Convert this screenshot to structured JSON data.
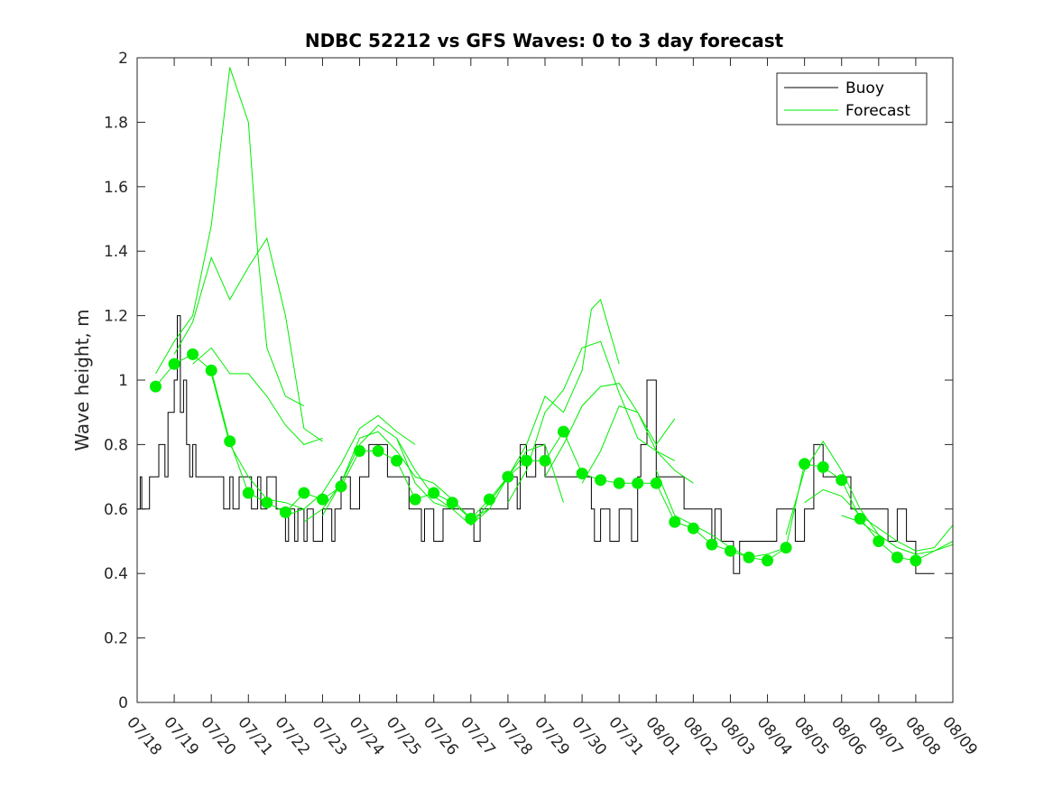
{
  "chart_data": {
    "type": "line",
    "title": "NDBC 52212 vs GFS Waves: 0 to 3 day forecast",
    "xlabel": "",
    "ylabel": "Wave height, m",
    "xlim": [
      "07/18",
      "08/09"
    ],
    "ylim": [
      0,
      2
    ],
    "x_tick_labels": [
      "07/18",
      "07/19",
      "07/20",
      "07/21",
      "07/22",
      "07/23",
      "07/24",
      "07/25",
      "07/26",
      "07/27",
      "07/28",
      "07/29",
      "07/30",
      "07/31",
      "08/01",
      "08/02",
      "08/03",
      "08/04",
      "08/05",
      "08/06",
      "08/07",
      "08/08",
      "08/09"
    ],
    "y_ticks": [
      0,
      0.2,
      0.4,
      0.6,
      0.8,
      1,
      1.2,
      1.4,
      1.6,
      1.8,
      2
    ],
    "grid": false,
    "legend": {
      "placement": "top-right",
      "entries": [
        "Buoy",
        "Forecast"
      ]
    },
    "colors": {
      "buoy": "#000000",
      "forecast": "#00ee00",
      "markers": "#00ee00"
    },
    "series": [
      {
        "name": "Buoy",
        "x": [
          "07/18 00:00",
          "07/18 02:00",
          "07/18 03:00",
          "07/18 06:00",
          "07/18 08:00",
          "07/18 12:00",
          "07/18 14:00",
          "07/18 18:00",
          "07/18 20:00",
          "07/19 00:00",
          "07/19 02:00",
          "07/19 04:00",
          "07/19 06:00",
          "07/19 08:00",
          "07/19 10:00",
          "07/19 12:00",
          "07/19 14:00",
          "07/19 16:00",
          "07/19 18:00",
          "07/20 00:00",
          "07/20 06:00",
          "07/20 08:00",
          "07/20 12:00",
          "07/20 14:00",
          "07/20 18:00",
          "07/21 00:00",
          "07/21 02:00",
          "07/21 06:00",
          "07/21 08:00",
          "07/21 12:00",
          "07/21 18:00",
          "07/21 20:00",
          "07/22 00:00",
          "07/22 02:00",
          "07/22 06:00",
          "07/22 08:00",
          "07/22 12:00",
          "07/22 14:00",
          "07/22 18:00",
          "07/23 00:00",
          "07/23 06:00",
          "07/23 08:00",
          "07/23 12:00",
          "07/23 18:00",
          "07/24 00:00",
          "07/24 06:00",
          "07/24 12:00",
          "07/24 18:00",
          "07/25 00:00",
          "07/25 06:00",
          "07/25 08:00",
          "07/25 12:00",
          "07/25 16:00",
          "07/25 18:00",
          "07/26 00:00",
          "07/26 06:00",
          "07/26 12:00",
          "07/26 18:00",
          "07/27 00:00",
          "07/27 02:00",
          "07/27 06:00",
          "07/27 12:00",
          "07/27 18:00",
          "07/28 00:00",
          "07/28 06:00",
          "07/28 08:00",
          "07/28 12:00",
          "07/28 18:00",
          "07/29 00:00",
          "07/29 06:00",
          "07/29 12:00",
          "07/29 18:00",
          "07/30 00:00",
          "07/30 06:00",
          "07/30 08:00",
          "07/30 12:00",
          "07/30 18:00",
          "07/31 00:00",
          "07/31 06:00",
          "07/31 08:00",
          "07/31 12:00",
          "07/31 14:00",
          "07/31 18:00",
          "08/01 00:00",
          "08/01 06:00",
          "08/01 12:00",
          "08/01 18:00",
          "08/02 00:00",
          "08/02 06:00",
          "08/02 12:00",
          "08/02 14:00",
          "08/02 18:00",
          "08/03 00:00",
          "08/03 02:00",
          "08/03 06:00",
          "08/03 12:00",
          "08/03 18:00",
          "08/04 00:00",
          "08/04 06:00",
          "08/04 12:00",
          "08/04 18:00",
          "08/05 00:00",
          "08/05 06:00",
          "08/05 12:00",
          "08/05 18:00",
          "08/06 00:00",
          "08/06 06:00",
          "08/06 12:00",
          "08/06 18:00",
          "08/07 00:00",
          "08/07 06:00",
          "08/07 12:00",
          "08/07 18:00",
          "08/08 00:00",
          "08/08 06:00"
        ],
        "values": [
          0.6,
          0.7,
          0.6,
          0.6,
          0.7,
          0.7,
          0.8,
          0.7,
          0.9,
          1.0,
          1.2,
          0.9,
          1.0,
          0.8,
          0.7,
          0.8,
          0.7,
          0.7,
          0.7,
          0.7,
          0.7,
          0.6,
          0.7,
          0.6,
          0.7,
          0.7,
          0.6,
          0.7,
          0.6,
          0.7,
          0.6,
          0.6,
          0.5,
          0.6,
          0.5,
          0.6,
          0.5,
          0.6,
          0.5,
          0.6,
          0.5,
          0.6,
          0.7,
          0.6,
          0.7,
          0.8,
          0.8,
          0.7,
          0.7,
          0.7,
          0.6,
          0.6,
          0.5,
          0.6,
          0.5,
          0.6,
          0.6,
          0.6,
          0.6,
          0.5,
          0.6,
          0.6,
          0.6,
          0.7,
          0.6,
          0.8,
          0.7,
          0.8,
          0.7,
          0.7,
          0.7,
          0.7,
          0.7,
          0.6,
          0.5,
          0.6,
          0.5,
          0.6,
          0.6,
          0.5,
          0.7,
          0.8,
          1.0,
          0.7,
          0.7,
          0.7,
          0.6,
          0.6,
          0.6,
          0.5,
          0.6,
          0.5,
          0.5,
          0.4,
          0.5,
          0.5,
          0.5,
          0.5,
          0.6,
          0.6,
          0.5,
          0.6,
          0.8,
          0.7,
          0.7,
          0.7,
          0.6,
          0.6,
          0.6,
          0.6,
          0.5,
          0.6,
          0.5,
          0.4,
          0.4
        ]
      },
      {
        "name": "Forecast",
        "runs": [
          {
            "x": [
              "07/18 12:00",
              "07/19 00:00",
              "07/19 12:00",
              "07/20 00:00",
              "07/20 12:00",
              "07/21 00:00",
              "07/21 12:00",
              "07/22 00:00",
              "07/22 12:00",
              "07/23 00:00",
              "07/23 12:00",
              "07/24 00:00",
              "07/24 12:00",
              "07/25 00:00",
              "07/25 12:00",
              "07/26 00:00",
              "07/26 12:00",
              "07/27 00:00",
              "07/27 12:00",
              "07/28 00:00",
              "07/28 12:00",
              "07/29 00:00",
              "07/29 12:00",
              "07/30 00:00",
              "07/30 12:00",
              "07/31 00:00",
              "07/31 12:00",
              "08/01 00:00",
              "08/01 12:00",
              "08/02 00:00",
              "08/02 12:00",
              "08/03 00:00",
              "08/03 12:00",
              "08/04 00:00",
              "08/04 12:00",
              "08/05 00:00",
              "08/05 12:00",
              "08/06 00:00",
              "08/06 12:00",
              "08/07 00:00",
              "08/07 12:00",
              "08/08 00:00",
              "08/08 12:00",
              "08/09 00:00"
            ],
            "values": [
              0.98,
              1.05,
              1.08,
              1.03,
              0.81,
              0.65,
              0.62,
              0.59,
              0.65,
              0.63,
              0.67,
              0.78,
              0.78,
              0.75,
              0.63,
              0.65,
              0.62,
              0.57,
              0.63,
              0.7,
              0.75,
              0.75,
              0.84,
              0.71,
              0.69,
              0.68,
              0.68,
              0.68,
              0.56,
              0.54,
              0.49,
              0.47,
              0.45,
              0.44,
              0.48,
              0.74,
              0.73,
              0.69,
              0.57,
              0.5,
              0.45,
              0.44,
              0.47,
              0.5
            ]
          },
          {
            "x": [
              "07/18 12:00",
              "07/19 00:00",
              "07/19 12:00",
              "07/20 00:00",
              "07/20 12:00",
              "07/21 00:00",
              "07/21 06:00",
              "07/21 12:00",
              "07/22 00:00",
              "07/22 12:00"
            ],
            "values": [
              1.02,
              1.12,
              1.2,
              1.48,
              1.97,
              1.8,
              1.4,
              1.1,
              0.95,
              0.92
            ]
          },
          {
            "x": [
              "07/19 00:00",
              "07/19 12:00",
              "07/20 00:00",
              "07/20 12:00",
              "07/21 00:00",
              "07/21 12:00",
              "07/22 00:00",
              "07/22 12:00",
              "07/23 00:00"
            ],
            "values": [
              1.08,
              1.18,
              1.38,
              1.25,
              1.35,
              1.44,
              1.2,
              0.85,
              0.81
            ]
          },
          {
            "x": [
              "07/19 12:00",
              "07/20 00:00",
              "07/20 12:00",
              "07/21 00:00",
              "07/21 12:00",
              "07/22 00:00",
              "07/22 12:00",
              "07/23 00:00"
            ],
            "values": [
              1.05,
              1.1,
              1.02,
              1.02,
              0.95,
              0.86,
              0.8,
              0.82
            ]
          },
          {
            "x": [
              "07/20 00:00",
              "07/20 12:00",
              "07/21 00:00",
              "07/21 12:00",
              "07/22 00:00",
              "07/22 12:00"
            ],
            "values": [
              1.02,
              0.8,
              0.7,
              0.63,
              0.62,
              0.6
            ]
          },
          {
            "x": [
              "07/22 00:00",
              "07/22 12:00",
              "07/23 00:00",
              "07/23 12:00",
              "07/24 00:00",
              "07/24 12:00",
              "07/25 00:00",
              "07/25 12:00"
            ],
            "values": [
              0.58,
              0.6,
              0.65,
              0.74,
              0.85,
              0.89,
              0.84,
              0.8
            ]
          },
          {
            "x": [
              "07/22 12:00",
              "07/23 00:00",
              "07/23 12:00",
              "07/24 00:00",
              "07/24 12:00",
              "07/25 00:00",
              "07/25 12:00",
              "07/26 00:00",
              "07/26 12:00"
            ],
            "values": [
              0.56,
              0.6,
              0.68,
              0.8,
              0.86,
              0.82,
              0.72,
              0.64,
              0.6
            ]
          },
          {
            "x": [
              "07/23 00:00",
              "07/23 12:00",
              "07/24 00:00",
              "07/24 12:00",
              "07/25 00:00",
              "07/25 12:00",
              "07/26 00:00",
              "07/26 12:00",
              "07/27 00:00",
              "07/27 12:00"
            ],
            "values": [
              0.58,
              0.68,
              0.82,
              0.84,
              0.78,
              0.7,
              0.68,
              0.63,
              0.57,
              0.6
            ]
          },
          {
            "x": [
              "07/25 00:00",
              "07/25 12:00",
              "07/26 00:00",
              "07/26 12:00",
              "07/27 00:00",
              "07/27 12:00",
              "07/28 00:00",
              "07/28 12:00",
              "07/29 00:00",
              "07/29 12:00"
            ],
            "values": [
              0.82,
              0.68,
              0.62,
              0.6,
              0.55,
              0.6,
              0.7,
              0.78,
              0.8,
              0.62
            ]
          },
          {
            "x": [
              "07/27 00:00",
              "07/27 12:00",
              "07/28 00:00",
              "07/28 12:00",
              "07/29 00:00",
              "07/29 12:00",
              "07/30 00:00",
              "07/30 06:00",
              "07/30 12:00",
              "07/31 00:00"
            ],
            "values": [
              0.55,
              0.62,
              0.7,
              0.8,
              0.95,
              0.9,
              1.03,
              1.22,
              1.25,
              1.05
            ]
          },
          {
            "x": [
              "07/28 00:00",
              "07/28 12:00",
              "07/29 00:00",
              "07/29 12:00",
              "07/30 00:00",
              "07/30 12:00",
              "07/31 00:00",
              "07/31 12:00",
              "08/01 00:00",
              "08/01 12:00"
            ],
            "values": [
              0.62,
              0.72,
              0.9,
              0.97,
              1.1,
              1.12,
              0.96,
              0.82,
              0.78,
              0.75
            ]
          },
          {
            "x": [
              "07/29 00:00",
              "07/29 12:00",
              "07/30 00:00",
              "07/30 12:00",
              "07/31 00:00",
              "07/31 12:00",
              "08/01 00:00",
              "08/01 12:00"
            ],
            "values": [
              0.7,
              0.8,
              0.92,
              0.98,
              0.99,
              0.9,
              0.8,
              0.88
            ]
          },
          {
            "x": [
              "07/30 00:00",
              "07/30 12:00",
              "07/31 00:00",
              "07/31 12:00",
              "08/01 00:00",
              "08/01 12:00",
              "08/02 00:00"
            ],
            "values": [
              0.68,
              0.78,
              0.92,
              0.9,
              0.78,
              0.72,
              0.68
            ]
          },
          {
            "x": [
              "08/01 00:00",
              "08/01 12:00",
              "08/02 00:00",
              "08/02 12:00",
              "08/03 00:00",
              "08/03 12:00",
              "08/04 00:00",
              "08/04 12:00"
            ],
            "values": [
              0.72,
              0.58,
              0.55,
              0.52,
              0.48,
              0.45,
              0.46,
              0.48
            ]
          },
          {
            "x": [
              "08/04 12:00",
              "08/05 00:00",
              "08/05 12:00",
              "08/06 00:00",
              "08/06 12:00",
              "08/07 00:00",
              "08/07 12:00",
              "08/08 00:00"
            ],
            "values": [
              0.52,
              0.72,
              0.81,
              0.72,
              0.6,
              0.52,
              0.48,
              0.46
            ]
          },
          {
            "x": [
              "08/05 00:00",
              "08/05 12:00",
              "08/06 00:00",
              "08/06 12:00",
              "08/07 00:00",
              "08/07 12:00",
              "08/08 00:00",
              "08/08 12:00",
              "08/09 00:00"
            ],
            "values": [
              0.62,
              0.66,
              0.64,
              0.58,
              0.54,
              0.5,
              0.47,
              0.48,
              0.55
            ]
          },
          {
            "x": [
              "08/06 00:00",
              "08/06 12:00",
              "08/07 00:00",
              "08/07 12:00",
              "08/08 00:00",
              "08/08 12:00",
              "08/09 00:00"
            ],
            "values": [
              0.58,
              0.56,
              0.52,
              0.48,
              0.46,
              0.47,
              0.49
            ]
          }
        ]
      }
    ],
    "markers": {
      "x": [
        "07/18 12:00",
        "07/19 00:00",
        "07/19 12:00",
        "07/20 00:00",
        "07/20 12:00",
        "07/21 00:00",
        "07/21 12:00",
        "07/22 00:00",
        "07/22 12:00",
        "07/23 00:00",
        "07/23 12:00",
        "07/24 00:00",
        "07/24 12:00",
        "07/25 00:00",
        "07/25 12:00",
        "07/26 00:00",
        "07/26 12:00",
        "07/27 00:00",
        "07/27 12:00",
        "07/28 00:00",
        "07/28 12:00",
        "07/29 00:00",
        "07/29 12:00",
        "07/30 00:00",
        "07/30 12:00",
        "07/31 00:00",
        "07/31 12:00",
        "08/01 00:00",
        "08/01 12:00",
        "08/02 00:00",
        "08/02 12:00",
        "08/03 00:00",
        "08/03 12:00",
        "08/04 00:00",
        "08/04 12:00",
        "08/05 00:00",
        "08/05 12:00",
        "08/06 00:00",
        "08/06 12:00",
        "08/07 00:00",
        "08/07 12:00",
        "08/08 00:00"
      ],
      "values": [
        0.98,
        1.05,
        1.08,
        1.03,
        0.81,
        0.65,
        0.62,
        0.59,
        0.65,
        0.63,
        0.67,
        0.78,
        0.78,
        0.75,
        0.63,
        0.65,
        0.62,
        0.57,
        0.63,
        0.7,
        0.75,
        0.75,
        0.84,
        0.71,
        0.69,
        0.68,
        0.68,
        0.68,
        0.56,
        0.54,
        0.49,
        0.47,
        0.45,
        0.44,
        0.48,
        0.74,
        0.73,
        0.69,
        0.57,
        0.5,
        0.45,
        0.44
      ]
    }
  }
}
